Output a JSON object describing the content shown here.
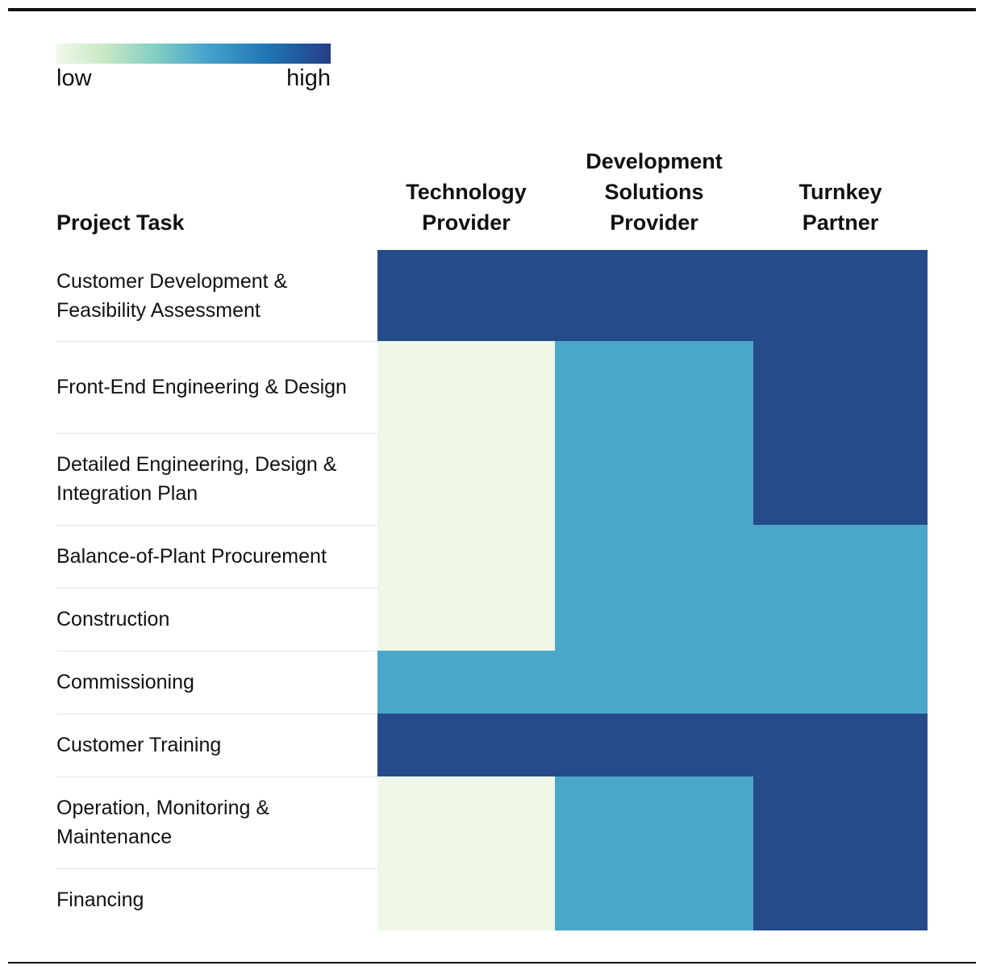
{
  "legend": {
    "low_label": "low",
    "high_label": "high"
  },
  "colors": {
    "low": "#eef7e8",
    "medium": "#4aa7ca",
    "high": "#254b8a"
  },
  "chart_data": {
    "type": "heatmap",
    "row_header": "Project Task",
    "columns": [
      {
        "line1": "Technology",
        "line2": "Provider",
        "line3": ""
      },
      {
        "line1": "Development",
        "line2": "Solutions",
        "line3": "Provider"
      },
      {
        "line1": "Turnkey",
        "line2": "Partner",
        "line3": ""
      }
    ],
    "rows": [
      {
        "task": "Customer Development & Feasibility Assessment",
        "values": [
          "high",
          "high",
          "high"
        ]
      },
      {
        "task": "Front-End Engineering & Design",
        "values": [
          "low",
          "medium",
          "high"
        ]
      },
      {
        "task": "Detailed Engineering, Design & Integration Plan",
        "values": [
          "low",
          "medium",
          "high"
        ]
      },
      {
        "task": "Balance-of-Plant Procurement",
        "values": [
          "low",
          "medium",
          "medium"
        ]
      },
      {
        "task": "Construction",
        "values": [
          "low",
          "medium",
          "medium"
        ]
      },
      {
        "task": "Commissioning",
        "values": [
          "medium",
          "medium",
          "medium"
        ]
      },
      {
        "task": "Customer Training",
        "values": [
          "high",
          "high",
          "high"
        ]
      },
      {
        "task": "Operation, Monitoring & Maintenance",
        "values": [
          "low",
          "medium",
          "high"
        ]
      },
      {
        "task": "Financing",
        "values": [
          "low",
          "medium",
          "high"
        ]
      }
    ],
    "scale": [
      "low",
      "medium",
      "high"
    ]
  }
}
